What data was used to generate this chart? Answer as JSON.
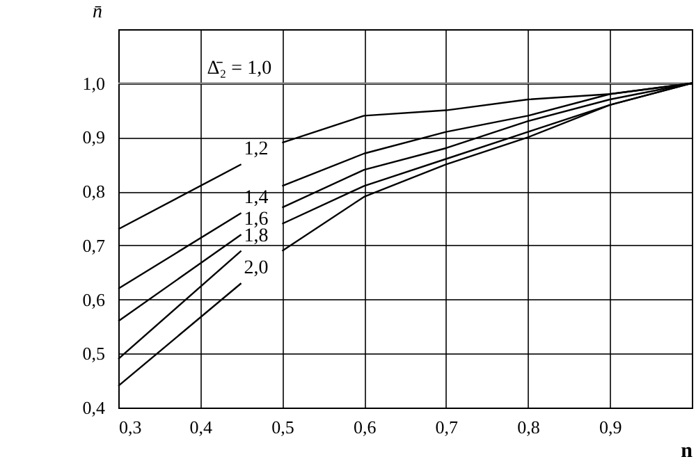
{
  "chart_data": {
    "type": "line",
    "xlabel": "n",
    "ylabel": "n̄",
    "x": [
      0.3,
      0.45,
      0.475,
      0.5,
      0.6,
      0.7,
      0.8,
      0.9,
      1.0
    ],
    "series": [
      {
        "name": "Δ̄₂ = 1,0",
        "color": "#808080",
        "x": [
          0.3,
          0.405,
          1.0
        ],
        "values": [
          1.0,
          1.0,
          1.0
        ]
      },
      {
        "name": "1,2",
        "color": "#000000",
        "values": [
          0.73,
          0.85,
          null,
          0.89,
          0.94,
          0.95,
          0.97,
          0.98,
          1.0
        ]
      },
      {
        "name": "1,4",
        "color": "#000000",
        "values": [
          0.62,
          0.76,
          null,
          0.81,
          0.87,
          0.91,
          0.94,
          0.98,
          1.0
        ]
      },
      {
        "name": "1,6",
        "color": "#000000",
        "values": [
          0.56,
          0.72,
          null,
          0.77,
          0.84,
          0.88,
          0.93,
          0.97,
          1.0
        ]
      },
      {
        "name": "1,8",
        "color": "#000000",
        "values": [
          0.49,
          0.69,
          null,
          0.74,
          0.81,
          0.86,
          0.91,
          0.96,
          1.0
        ]
      },
      {
        "name": "2,0",
        "color": "#000000",
        "values": [
          0.44,
          0.63,
          null,
          0.69,
          0.79,
          0.85,
          0.9,
          0.96,
          1.0
        ]
      }
    ],
    "xlim": [
      0.3,
      1.0
    ],
    "xticks": [
      {
        "value": 0.3,
        "label": "0,3"
      },
      {
        "value": 0.4,
        "label": "0,4"
      },
      {
        "value": 0.5,
        "label": "0,5"
      },
      {
        "value": 0.6,
        "label": "0,6"
      },
      {
        "value": 0.7,
        "label": "0,7"
      },
      {
        "value": 0.8,
        "label": "0,8"
      },
      {
        "value": 0.9,
        "label": "0,9"
      },
      {
        "value": 1.0,
        "label": null
      }
    ],
    "ylim": [
      0.4,
      1.1
    ],
    "yticks": [
      {
        "value": 0.4,
        "label": "0,4"
      },
      {
        "value": 0.5,
        "label": "0,5"
      },
      {
        "value": 0.6,
        "label": "0,6"
      },
      {
        "value": 0.7,
        "label": "0,7"
      },
      {
        "value": 0.8,
        "label": "0,8"
      },
      {
        "value": 0.9,
        "label": "0,9"
      },
      {
        "value": 1.0,
        "label": "1,0"
      }
    ],
    "grid": true
  }
}
